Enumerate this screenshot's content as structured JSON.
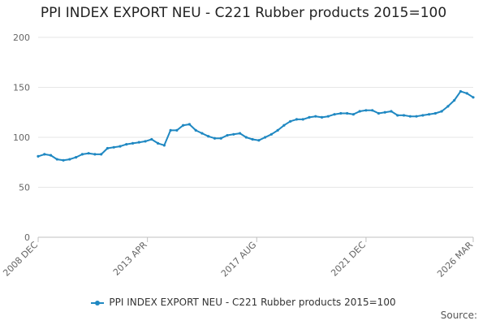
{
  "colors": {
    "series": "#1f88c2",
    "grid": "#e6e6e6",
    "axis": "#c0c0c0"
  },
  "source_label": "Source:",
  "chart_data": {
    "type": "line",
    "title": "PPI INDEX EXPORT NEU - C221 Rubber products 2015=100",
    "xlabel": "",
    "ylabel": "",
    "ylim": [
      0,
      200
    ],
    "yticks": [
      0,
      50,
      100,
      150,
      200
    ],
    "xticks": [
      "2008 DEC",
      "2013 APR",
      "2017 AUG",
      "2021 DEC",
      "2026 MAR"
    ],
    "x_period": "monthly",
    "x_range": [
      "2008 DEC",
      "2026 MAR"
    ],
    "grid": true,
    "legend_position": "bottom",
    "series": [
      {
        "name": "PPI INDEX EXPORT NEU - C221 Rubber products 2015=100",
        "x": [
          "2008 DEC",
          "2009 MAR",
          "2009 JUN",
          "2009 SEP",
          "2009 DEC",
          "2010 MAR",
          "2010 JUN",
          "2010 SEP",
          "2010 DEC",
          "2011 MAR",
          "2011 JUN",
          "2011 SEP",
          "2011 DEC",
          "2012 MAR",
          "2012 JUN",
          "2012 SEP",
          "2012 DEC",
          "2013 MAR",
          "2013 JUN",
          "2013 SEP",
          "2013 DEC",
          "2014 MAR",
          "2014 JUN",
          "2014 SEP",
          "2014 DEC",
          "2015 MAR",
          "2015 JUN",
          "2015 SEP",
          "2015 DEC",
          "2016 MAR",
          "2016 JUN",
          "2016 SEP",
          "2016 DEC",
          "2017 MAR",
          "2017 JUN",
          "2017 SEP",
          "2017 DEC",
          "2018 MAR",
          "2018 JUN",
          "2018 SEP",
          "2018 DEC",
          "2019 MAR",
          "2019 JUN",
          "2019 SEP",
          "2019 DEC",
          "2020 MAR",
          "2020 JUN",
          "2020 SEP",
          "2020 DEC",
          "2021 MAR",
          "2021 JUN",
          "2021 SEP",
          "2021 DEC",
          "2022 MAR",
          "2022 JUN",
          "2022 SEP",
          "2022 DEC",
          "2023 MAR",
          "2023 JUN",
          "2023 SEP",
          "2023 DEC",
          "2024 MAR",
          "2024 JUN",
          "2024 SEP",
          "2024 DEC",
          "2025 MAR",
          "2025 JUN",
          "2025 SEP",
          "2025 DEC",
          "2026 MAR"
        ],
        "values": [
          81,
          83,
          82,
          78,
          77,
          78,
          80,
          83,
          84,
          83,
          83,
          89,
          90,
          91,
          93,
          94,
          95,
          96,
          98,
          94,
          92,
          107,
          107,
          112,
          113,
          107,
          104,
          101,
          99,
          99,
          102,
          103,
          104,
          100,
          98,
          97,
          100,
          103,
          107,
          112,
          116,
          118,
          118,
          120,
          121,
          120,
          121,
          123,
          124,
          124,
          123,
          126,
          127,
          127,
          124,
          125,
          126,
          122,
          122,
          121,
          121,
          122,
          123,
          124,
          126,
          131,
          137,
          146,
          144,
          140
        ]
      }
    ]
  }
}
